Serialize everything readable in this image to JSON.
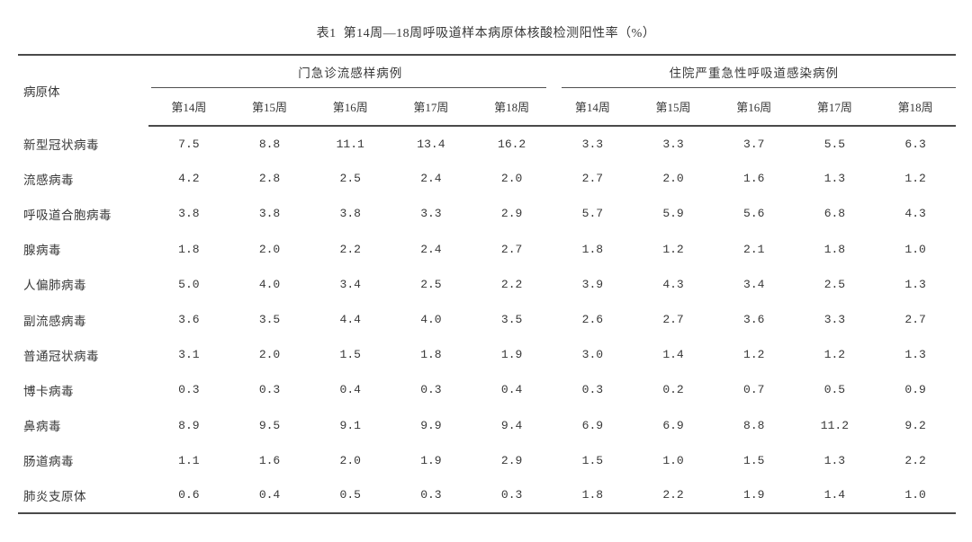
{
  "page": {
    "title": "表1  第14周—18周呼吸道样本病原体核酸检测阳性率（%）"
  },
  "table": {
    "row_header": "病原体",
    "groups": [
      {
        "label": "门急诊流感样病例",
        "weeks": [
          "第14周",
          "第15周",
          "第16周",
          "第17周",
          "第18周"
        ]
      },
      {
        "label": "住院严重急性呼吸道感染病例",
        "weeks": [
          "第14周",
          "第15周",
          "第16周",
          "第17周",
          "第18周"
        ]
      }
    ],
    "rows": [
      {
        "pathogen": "新型冠状病毒",
        "ili": [
          "7.5",
          "8.8",
          "11.1",
          "13.4",
          "16.2"
        ],
        "sari": [
          "3.3",
          "3.3",
          "3.7",
          "5.5",
          "6.3"
        ]
      },
      {
        "pathogen": "流感病毒",
        "ili": [
          "4.2",
          "2.8",
          "2.5",
          "2.4",
          "2.0"
        ],
        "sari": [
          "2.7",
          "2.0",
          "1.6",
          "1.3",
          "1.2"
        ]
      },
      {
        "pathogen": "呼吸道合胞病毒",
        "ili": [
          "3.8",
          "3.8",
          "3.8",
          "3.3",
          "2.9"
        ],
        "sari": [
          "5.7",
          "5.9",
          "5.6",
          "6.8",
          "4.3"
        ]
      },
      {
        "pathogen": "腺病毒",
        "ili": [
          "1.8",
          "2.0",
          "2.2",
          "2.4",
          "2.7"
        ],
        "sari": [
          "1.8",
          "1.2",
          "2.1",
          "1.8",
          "1.0"
        ]
      },
      {
        "pathogen": "人偏肺病毒",
        "ili": [
          "5.0",
          "4.0",
          "3.4",
          "2.5",
          "2.2"
        ],
        "sari": [
          "3.9",
          "4.3",
          "3.4",
          "2.5",
          "1.3"
        ]
      },
      {
        "pathogen": "副流感病毒",
        "ili": [
          "3.6",
          "3.5",
          "4.4",
          "4.0",
          "3.5"
        ],
        "sari": [
          "2.6",
          "2.7",
          "3.6",
          "3.3",
          "2.7"
        ]
      },
      {
        "pathogen": "普通冠状病毒",
        "ili": [
          "3.1",
          "2.0",
          "1.5",
          "1.8",
          "1.9"
        ],
        "sari": [
          "3.0",
          "1.4",
          "1.2",
          "1.2",
          "1.3"
        ]
      },
      {
        "pathogen": "博卡病毒",
        "ili": [
          "0.3",
          "0.3",
          "0.4",
          "0.3",
          "0.4"
        ],
        "sari": [
          "0.3",
          "0.2",
          "0.7",
          "0.5",
          "0.9"
        ]
      },
      {
        "pathogen": "鼻病毒",
        "ili": [
          "8.9",
          "9.5",
          "9.1",
          "9.9",
          "9.4"
        ],
        "sari": [
          "6.9",
          "6.9",
          "8.8",
          "11.2",
          "9.2"
        ]
      },
      {
        "pathogen": "肠道病毒",
        "ili": [
          "1.1",
          "1.6",
          "2.0",
          "1.9",
          "2.9"
        ],
        "sari": [
          "1.5",
          "1.0",
          "1.5",
          "1.3",
          "2.2"
        ]
      },
      {
        "pathogen": "肺炎支原体",
        "ili": [
          "0.6",
          "0.4",
          "0.5",
          "0.3",
          "0.3"
        ],
        "sari": [
          "1.8",
          "2.2",
          "1.9",
          "1.4",
          "1.0"
        ]
      }
    ]
  }
}
